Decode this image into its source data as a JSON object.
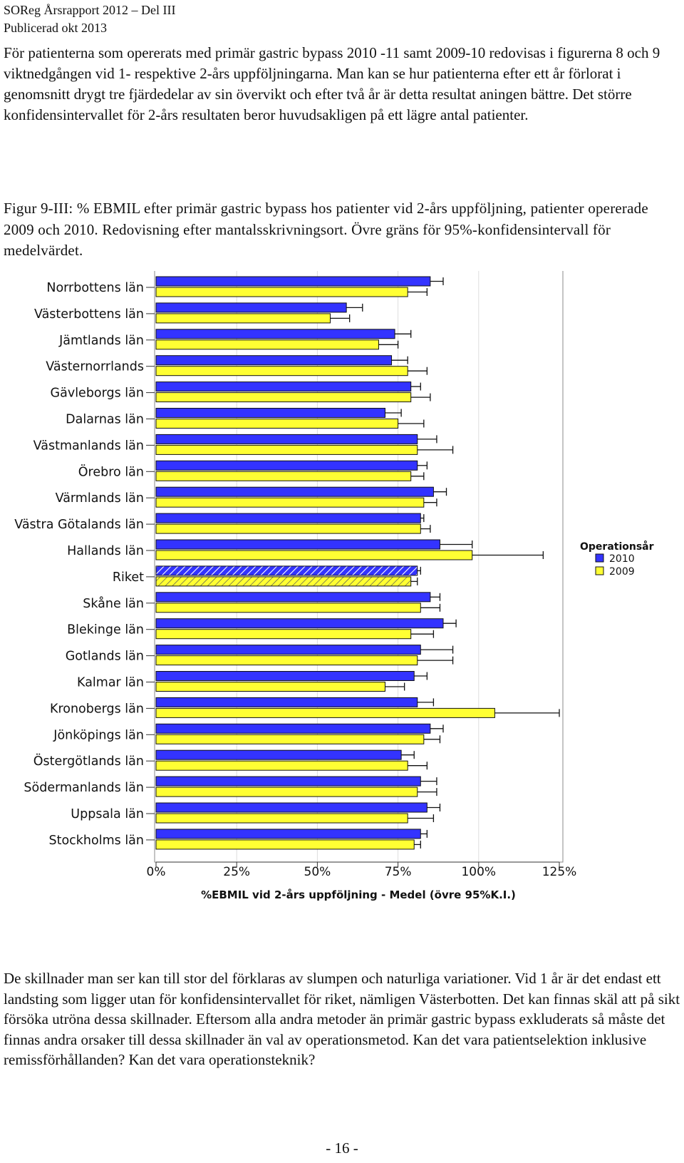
{
  "header": {
    "line1": "SOReg Årsrapport 2012 – Del III",
    "line2": "Publicerad okt 2013"
  },
  "intro_text": "För patienterna som opererats med primär gastric bypass 2010 -11 samt 2009-10 redovisas i figurerna 8 och 9 viktnedgången vid 1- respektive 2-års uppföljningarna. Man kan se hur patienterna efter ett år förlorat i genomsnitt drygt tre fjärdedelar av sin övervikt och efter två år är detta resultat aningen bättre. Det större konfidensintervallet för 2-års resultaten beror huvudsakligen på ett lägre antal patienter.",
  "figure_caption": "Figur 9-III: % EBMIL efter primär gastric bypass hos patienter vid 2-års uppföljning, patienter opererade 2009 och 2010. Redovisning efter mantalsskrivningsort. Övre gräns för 95%-konfidensintervall för medelvärdet.",
  "outro_text": "De skillnader man ser kan till stor del förklaras av slumpen och naturliga variationer. Vid 1 år är det endast ett landsting som ligger utan för konfidensintervallet för riket, nämligen Västerbotten. Det kan finnas skäl att på sikt försöka utröna dessa skillnader. Eftersom alla andra metoder än primär gastric bypass exkluderats så måste det finnas andra orsaker till dessa skillnader än val av operationsmetod. Kan det vara patientselektion inklusive remissförhållanden? Kan det vara operationsteknik?",
  "page_number": "- 16 -",
  "colors": {
    "series_2010": "#3333ff",
    "series_2009": "#ffff33",
    "gridline": "#dddddd"
  },
  "chart_data": {
    "type": "bar",
    "orientation": "horizontal",
    "title": "",
    "xlabel": "%EBMIL vid 2-års uppföljning - Medel (övre 95%K.I.)",
    "ylabel": "",
    "xlim": [
      0,
      125
    ],
    "xticks": [
      "0%",
      "25%",
      "50%",
      "75%",
      "100%",
      "125%"
    ],
    "grid": true,
    "legend_title": "Operationsår",
    "legend_position": "right",
    "highlighted_category": "Riket",
    "categories": [
      "Norrbottens län",
      "Västerbottens län",
      "Jämtlands län",
      "Västernorrlands",
      "Gävleborgs län",
      "Dalarnas län",
      "Västmanlands län",
      "Örebro län",
      "Värmlands län",
      "Västra Götalands län",
      "Hallands län",
      "Riket",
      "Skåne län",
      "Blekinge län",
      "Gotlands län",
      "Kalmar län",
      "Kronobergs län",
      "Jönköpings län",
      "Östergötlands län",
      "Södermanlands län",
      "Uppsala län",
      "Stockholms län"
    ],
    "series": [
      {
        "name": "2010",
        "values": [
          85,
          59,
          74,
          73,
          79,
          71,
          81,
          81,
          86,
          82,
          88,
          81,
          85,
          89,
          82,
          80,
          81,
          85,
          76,
          82,
          84,
          82
        ],
        "upper_ci": [
          89,
          64,
          79,
          78,
          82,
          76,
          87,
          84,
          90,
          83,
          98,
          82,
          88,
          93,
          92,
          84,
          86,
          89,
          80,
          87,
          88,
          84
        ]
      },
      {
        "name": "2009",
        "values": [
          78,
          54,
          69,
          78,
          79,
          75,
          81,
          79,
          83,
          82,
          98,
          79,
          82,
          79,
          81,
          71,
          105,
          83,
          78,
          81,
          78,
          80
        ],
        "upper_ci": [
          84,
          60,
          75,
          84,
          85,
          83,
          92,
          83,
          87,
          85,
          120,
          81,
          88,
          86,
          92,
          77,
          125,
          88,
          84,
          87,
          86,
          82
        ]
      }
    ]
  }
}
